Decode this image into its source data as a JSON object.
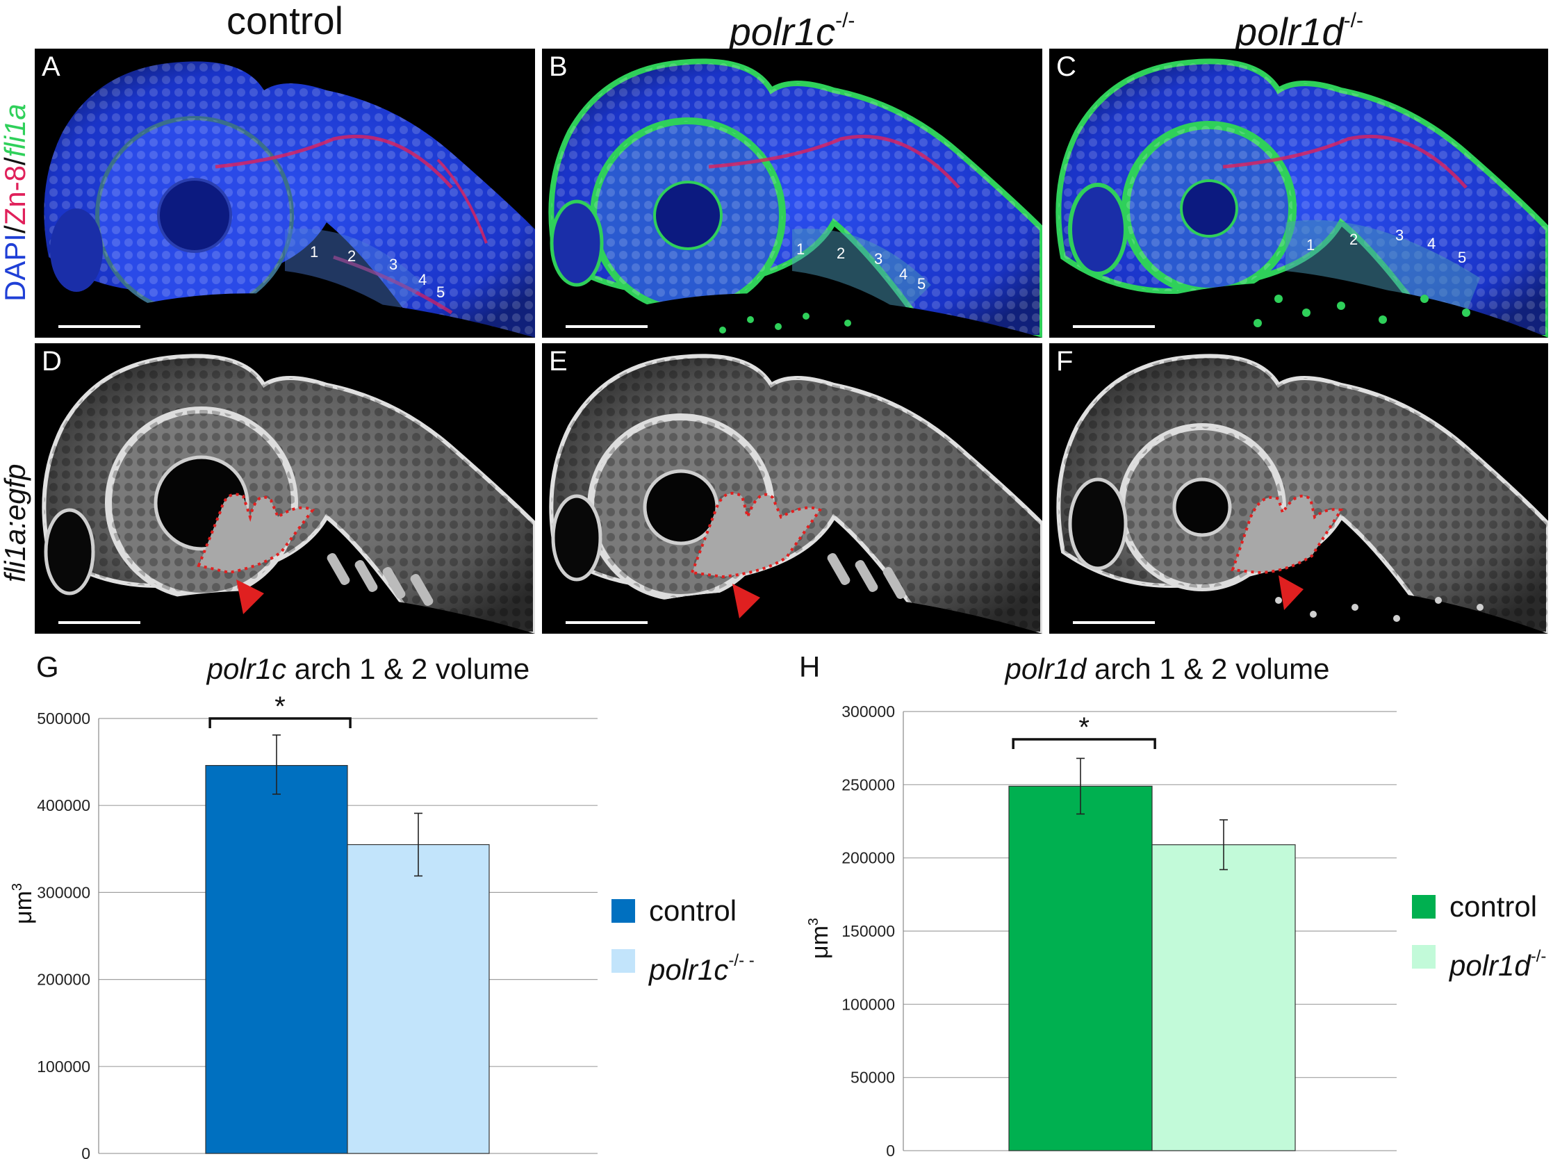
{
  "columns": {
    "control": "control",
    "polr1c": {
      "name": "polr1c",
      "sup": "-/-"
    },
    "polr1d": {
      "name": "polr1d",
      "sup": "-/-"
    }
  },
  "side_labels": {
    "top_dapi": "DAPI",
    "top_sep1": "/",
    "top_zn8": "Zn-8",
    "top_sep2": "/",
    "top_fli1a": "fli1a",
    "bottom": "fli1a:egfp"
  },
  "panels": {
    "A": "A",
    "B": "B",
    "C": "C",
    "D": "D",
    "E": "E",
    "F": "F",
    "arch_numbers": [
      "1",
      "2",
      "3",
      "4",
      "5"
    ]
  },
  "colors": {
    "dapi_blue": "#1f3fd6",
    "zn8_red": "#e0205a",
    "fli1a_green": "#2fd05a",
    "outline_red": "#e02020",
    "control_blue": "#0070c0",
    "polr1c_light": "#c2e4fb",
    "control_green": "#00b050",
    "polr1d_light": "#c2fad9"
  },
  "chart_data": [
    {
      "panel": "G",
      "type": "bar",
      "title_italic": "polr1c",
      "title_rest": " arch 1 & 2 volume",
      "ylabel": "μm",
      "ylabel_sup": "3",
      "ylim": [
        0,
        500000
      ],
      "yticks": [
        "0",
        "100000",
        "200000",
        "300000",
        "400000",
        "500000"
      ],
      "series": [
        {
          "name": "control",
          "value": 446000,
          "err_low": 413000,
          "err_high": 481000,
          "color": "#0070c0"
        },
        {
          "name": "polr1c",
          "sup": "-/- -",
          "value": 355000,
          "err_low": 319000,
          "err_high": 391000,
          "color": "#c2e4fb"
        }
      ],
      "significance": "*",
      "grid": true,
      "legend": "right"
    },
    {
      "panel": "H",
      "type": "bar",
      "title_italic": "polr1d",
      "title_rest": " arch 1 & 2 volume",
      "ylabel": "μm",
      "ylabel_sup": "3",
      "ylim": [
        0,
        300000
      ],
      "yticks": [
        "0",
        "50000",
        "100000",
        "150000",
        "200000",
        "250000",
        "300000"
      ],
      "series": [
        {
          "name": "control",
          "value": 249000,
          "err_low": 230000,
          "err_high": 268000,
          "color": "#00b050"
        },
        {
          "name": "polr1d",
          "sup": "-/-",
          "value": 209000,
          "err_low": 192000,
          "err_high": 226000,
          "color": "#c2fad9"
        }
      ],
      "significance": "*",
      "grid": true,
      "legend": "right"
    }
  ]
}
